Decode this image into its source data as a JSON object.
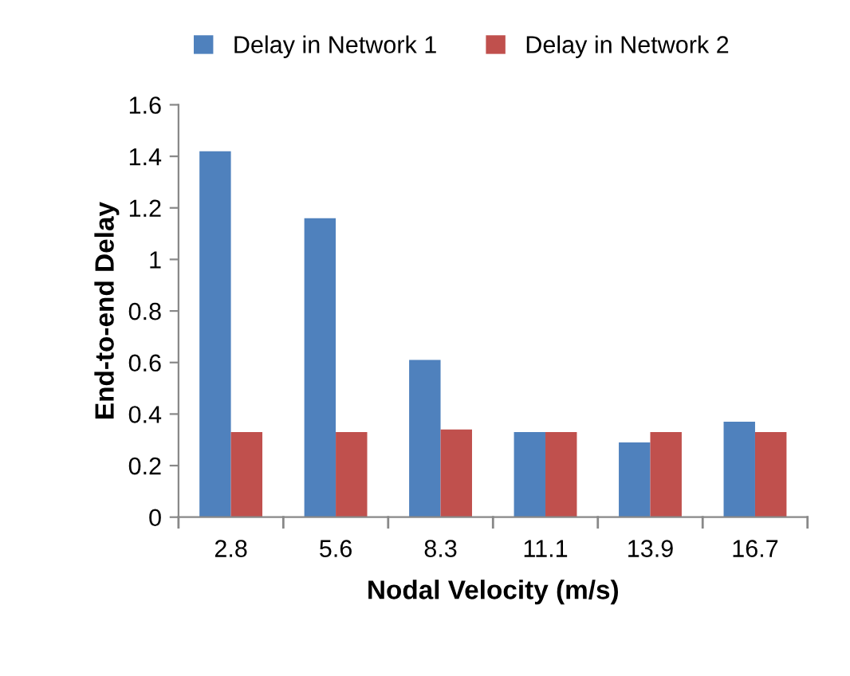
{
  "chart_data": {
    "type": "bar",
    "xlabel": "Nodal Velocity (m/s)",
    "ylabel": "End-to-end Delay",
    "categories": [
      "2.8",
      "5.6",
      "8.3",
      "11.1",
      "13.9",
      "16.7"
    ],
    "series": [
      {
        "name": "Delay in Network 1",
        "color": "#4f81bd",
        "values": [
          1.42,
          1.16,
          0.61,
          0.33,
          0.29,
          0.37
        ]
      },
      {
        "name": "Delay in Network 2",
        "color": "#c0504d",
        "values": [
          0.33,
          0.33,
          0.34,
          0.33,
          0.33,
          0.33
        ]
      }
    ],
    "ylim": [
      0,
      1.6
    ],
    "yticks": [
      0,
      {
        "value": 0.2,
        "label": "0.2"
      },
      {
        "value": 0.4,
        "label": "0.4"
      },
      {
        "value": 0.6,
        "label": "0.6"
      },
      {
        "value": 0.8,
        "label": "0.8"
      },
      1,
      {
        "value": 1.2,
        "label": "1.2"
      },
      {
        "value": 1.4,
        "label": "1.4"
      },
      {
        "value": 1.6,
        "label": "1.6"
      }
    ],
    "grid": false,
    "legend": "top"
  }
}
